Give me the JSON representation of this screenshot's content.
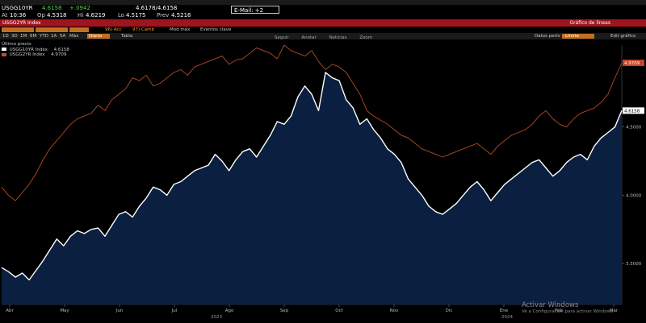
{
  "quote": {
    "ticker": "USGG10YR",
    "last": "4.6158",
    "change": "+.0942",
    "bid_ask": "4.6178/4.6158",
    "at_label": "At",
    "time": "10:36",
    "op_label": "Op",
    "open": "4.5318",
    "hi_label": "Hi",
    "high": "4.6219",
    "lo_label": "Lo",
    "low": "4.5175",
    "prev_label": "Prev",
    "prev": "4.5216",
    "email": "E-Mail: +2"
  },
  "red_bar": {
    "left_text": "USGG2YR Index",
    "right_text": "Gráfico de líneas"
  },
  "orange_bar": {
    "items": [
      "96) Acc",
      "97) Camb"
    ],
    "right_items": [
      "Mod máx",
      "Eventos clave"
    ]
  },
  "tab_bar": {
    "items": [
      "1D",
      "3D",
      "1M",
      "6M",
      "YTD",
      "1A",
      "5A",
      "Máx",
      "Diario",
      "Tabla"
    ],
    "right_items": [
      "Datos perío",
      "Límite",
      "Edit gráfico"
    ]
  },
  "toolbar": {
    "items": [
      "Seguir",
      "Anotar",
      "Noticias",
      "Zoom"
    ]
  },
  "legend": {
    "title": "Último precio",
    "series": [
      {
        "name": "USGG10YR Index",
        "value": "4.6158",
        "color": "#ffffff"
      },
      {
        "name": "USGG2YR Index",
        "value": "4.9709",
        "color": "#c0502a"
      }
    ]
  },
  "watermark": {
    "title": "Activar Windows",
    "subtitle": "Ve a Configuración para activar Windows."
  },
  "chart_data": {
    "type": "line",
    "x_ticks": [
      "Abr",
      "May",
      "Jun",
      "Jul",
      "Ago",
      "Sep",
      "Oct",
      "Nov",
      "Dic",
      "Ene",
      "Feb",
      "Mar"
    ],
    "year_labels": [
      "2023",
      "2024"
    ],
    "y_ticks": [
      "3.5000",
      "4.0000",
      "4.5000"
    ],
    "ylim": [
      3.2,
      5.1
    ],
    "series": [
      {
        "name": "USGG10YR Index",
        "color": "#ffffff",
        "fill": "#0b1f40",
        "last_label": "4.6158",
        "values": [
          3.47,
          3.44,
          3.4,
          3.43,
          3.38,
          3.45,
          3.52,
          3.6,
          3.68,
          3.63,
          3.7,
          3.74,
          3.72,
          3.75,
          3.76,
          3.7,
          3.78,
          3.86,
          3.88,
          3.84,
          3.92,
          3.98,
          4.06,
          4.04,
          4.0,
          4.08,
          4.1,
          4.14,
          4.18,
          4.2,
          4.22,
          4.3,
          4.25,
          4.18,
          4.26,
          4.32,
          4.34,
          4.28,
          4.36,
          4.44,
          4.54,
          4.52,
          4.58,
          4.72,
          4.8,
          4.74,
          4.62,
          4.9,
          4.86,
          4.84,
          4.7,
          4.64,
          4.52,
          4.56,
          4.48,
          4.42,
          4.34,
          4.3,
          4.24,
          4.12,
          4.06,
          4.0,
          3.92,
          3.88,
          3.86,
          3.9,
          3.94,
          4.0,
          4.06,
          4.1,
          4.04,
          3.96,
          4.02,
          4.08,
          4.12,
          4.16,
          4.2,
          4.24,
          4.26,
          4.2,
          4.14,
          4.18,
          4.24,
          4.28,
          4.3,
          4.26,
          4.36,
          4.42,
          4.46,
          4.5,
          4.62
        ]
      },
      {
        "name": "USGG2YR Index",
        "color": "#b14b24",
        "fill": "none",
        "last_label": "4.9709",
        "values": [
          4.06,
          4.0,
          3.96,
          4.02,
          4.08,
          4.16,
          4.26,
          4.34,
          4.4,
          4.46,
          4.52,
          4.56,
          4.58,
          4.6,
          4.66,
          4.62,
          4.7,
          4.74,
          4.78,
          4.86,
          4.84,
          4.88,
          4.8,
          4.82,
          4.86,
          4.9,
          4.92,
          4.88,
          4.94,
          4.96,
          4.98,
          5.0,
          5.02,
          4.96,
          4.99,
          5.0,
          5.04,
          5.08,
          5.06,
          5.04,
          5.0,
          5.1,
          5.06,
          5.04,
          5.02,
          5.06,
          4.98,
          4.92,
          4.96,
          4.94,
          4.9,
          4.82,
          4.74,
          4.62,
          4.58,
          4.55,
          4.52,
          4.48,
          4.44,
          4.42,
          4.38,
          4.34,
          4.32,
          4.3,
          4.28,
          4.3,
          4.32,
          4.34,
          4.36,
          4.38,
          4.34,
          4.3,
          4.36,
          4.4,
          4.44,
          4.46,
          4.48,
          4.52,
          4.58,
          4.62,
          4.56,
          4.52,
          4.5,
          4.56,
          4.6,
          4.62,
          4.64,
          4.68,
          4.74,
          4.86,
          4.97
        ]
      }
    ]
  }
}
